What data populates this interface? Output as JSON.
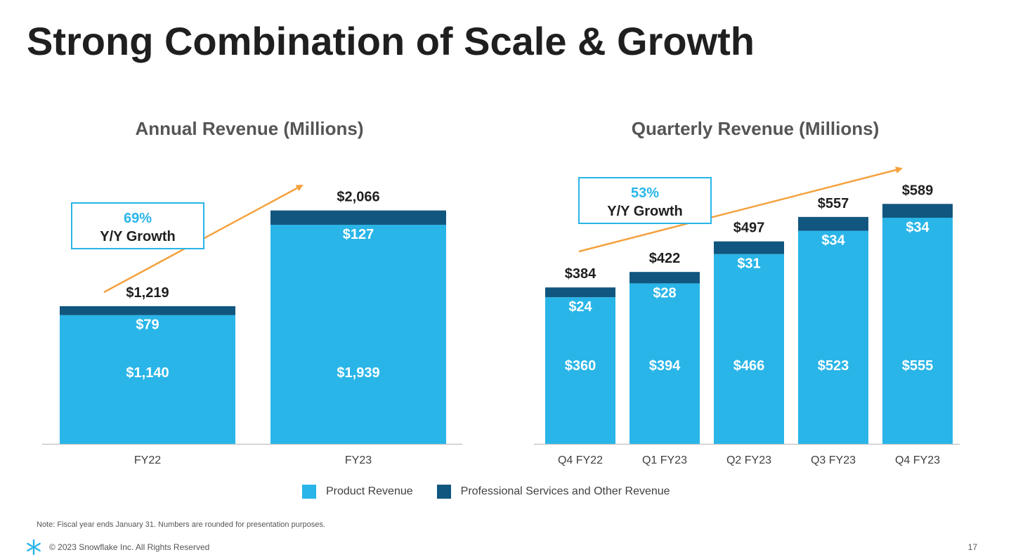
{
  "slide": {
    "title": "Strong Combination of Scale & Growth",
    "note": "Note: Fiscal year ends January 31. Numbers are rounded for presentation purposes.",
    "copyright": "© 2023 Snowflake Inc. All Rights Reserved",
    "page_number": "17",
    "logo_icon": "snowflake-icon"
  },
  "colors": {
    "product": "#29b5e8",
    "services": "#11567f",
    "arrow": "#f5a13d",
    "accent_text": "#29b5e8",
    "callout_border": "#29b5e8"
  },
  "legend": {
    "product_label": "Product Revenue",
    "services_label": "Professional Services and Other Revenue"
  },
  "chart_data": [
    {
      "type": "bar",
      "stacked": true,
      "title": "Annual Revenue (Millions)",
      "categories": [
        "FY22",
        "FY23"
      ],
      "series": [
        {
          "name": "Product Revenue",
          "values": [
            1140,
            1939
          ],
          "labels": [
            "$1,140",
            "$1,939"
          ]
        },
        {
          "name": "Professional Services and Other Revenue",
          "values": [
            79,
            127
          ],
          "labels": [
            "$79",
            "$127"
          ]
        }
      ],
      "totals": [
        1219,
        2066
      ],
      "total_labels": [
        "$1,219",
        "$2,066"
      ],
      "ylim": [
        0,
        2300
      ],
      "growth": {
        "pct": "69%",
        "text": "Y/Y Growth"
      },
      "grid": false
    },
    {
      "type": "bar",
      "stacked": true,
      "title": "Quarterly Revenue (Millions)",
      "categories": [
        "Q4 FY22",
        "Q1 FY23",
        "Q2 FY23",
        "Q3 FY23",
        "Q4 FY23"
      ],
      "series": [
        {
          "name": "Product Revenue",
          "values": [
            360,
            394,
            466,
            523,
            555
          ],
          "labels": [
            "$360",
            "$394",
            "$466",
            "$523",
            "$555"
          ]
        },
        {
          "name": "Professional Services and Other Revenue",
          "values": [
            24,
            28,
            31,
            34,
            34
          ],
          "labels": [
            "$24",
            "$28",
            "$31",
            "$34",
            "$34"
          ]
        }
      ],
      "totals": [
        384,
        422,
        497,
        557,
        589
      ],
      "total_labels": [
        "$384",
        "$422",
        "$497",
        "$557",
        "$589"
      ],
      "ylim": [
        0,
        655
      ],
      "growth": {
        "pct": "53%",
        "text": "Y/Y Growth"
      },
      "grid": false
    }
  ]
}
